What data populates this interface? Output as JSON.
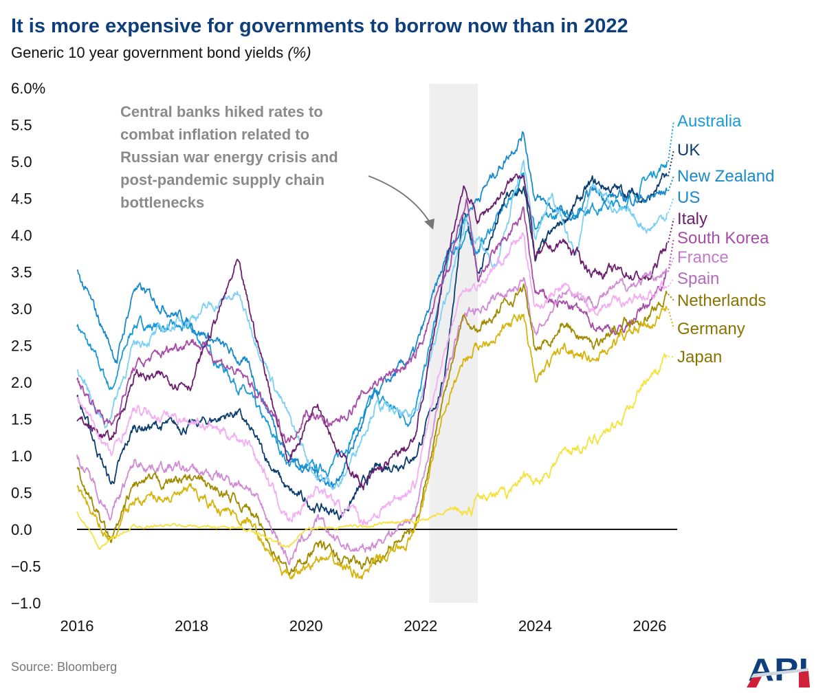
{
  "title": "It is more expensive for governments to borrow now than in 2022",
  "subtitle": "Generic 10 year government bond yields",
  "subtitle_unit": "(%)",
  "source": "Source: Bloomberg",
  "logo_text": "API",
  "chart_data": {
    "type": "line",
    "title": "It is more expensive for governments to borrow now than in 2022",
    "ylabel": "",
    "xlabel": "",
    "ylim": [
      -1.0,
      6.0
    ],
    "xlim": [
      2016,
      2026.4
    ],
    "y_ticks": [
      "6.0%",
      "5.5",
      "5.0",
      "4.5",
      "4.0",
      "3.5",
      "3.0",
      "2.5",
      "2.0",
      "1.5",
      "1.0",
      "0.5",
      "0.0",
      "−0.5",
      "−1.0"
    ],
    "y_tick_values": [
      6.0,
      5.5,
      5.0,
      4.5,
      4.0,
      3.5,
      3.0,
      2.5,
      2.0,
      1.5,
      1.0,
      0.5,
      0.0,
      -0.5,
      -1.0
    ],
    "x_ticks": [
      "2016",
      "2018",
      "2020",
      "2022",
      "2024",
      "2026"
    ],
    "x_tick_values": [
      2016,
      2018,
      2020,
      2022,
      2024,
      2026
    ],
    "grid": false,
    "legend": "right (direct labels)",
    "shaded_period": [
      2022.15,
      2023.0
    ],
    "annotation": [
      "Central banks hiked rates to",
      "combat inflation related to",
      "Russian war energy crisis and",
      "post-pandemic supply chain",
      "bottlenecks"
    ],
    "series": [
      {
        "name": "Australia",
        "color": "#1a9ad6",
        "label_color": "#1a9ad6",
        "x": [
          2016,
          2016.6,
          2017,
          2018,
          2019,
          2019.7,
          2020.2,
          2020.5,
          2021.2,
          2021.8,
          2022,
          2022.5,
          2022.8,
          2023,
          2023.8,
          2024,
          2024.5,
          2025,
          2025.5,
          2026,
          2026.3
        ],
        "y": [
          2.8,
          1.9,
          2.8,
          2.7,
          1.8,
          0.9,
          0.8,
          0.9,
          1.8,
          1.5,
          1.9,
          3.7,
          4.0,
          3.8,
          4.8,
          4.1,
          4.3,
          4.4,
          4.4,
          4.8,
          5.0
        ]
      },
      {
        "name": "UK",
        "color": "#0b3c6e",
        "label_color": "#0b3c6e",
        "x": [
          2016,
          2016.6,
          2017,
          2018,
          2018.8,
          2019.7,
          2020.2,
          2020.6,
          2021.2,
          2021.9,
          2022.4,
          2022.75,
          2023,
          2023.5,
          2023.8,
          2024,
          2024.5,
          2025,
          2025.5,
          2026,
          2026.3
        ],
        "y": [
          1.8,
          0.6,
          1.4,
          1.4,
          1.6,
          0.5,
          0.3,
          0.2,
          0.8,
          1.0,
          2.0,
          4.3,
          3.5,
          4.5,
          4.6,
          3.7,
          4.2,
          4.7,
          4.6,
          4.5,
          4.8
        ]
      },
      {
        "name": "New Zealand",
        "color": "#1989cc",
        "label_color": "#1989cc",
        "x": [
          2016,
          2016.7,
          2017,
          2018,
          2019,
          2019.7,
          2020.5,
          2021.2,
          2021.9,
          2022.5,
          2022.8,
          2023.8,
          2024,
          2024.7,
          2025,
          2025.5,
          2026,
          2026.3
        ],
        "y": [
          3.5,
          2.3,
          3.3,
          2.8,
          2.2,
          1.0,
          0.6,
          1.8,
          2.4,
          3.8,
          4.3,
          5.4,
          4.5,
          4.2,
          4.6,
          4.5,
          4.5,
          4.6
        ]
      },
      {
        "name": "US",
        "color": "#7dd0f5",
        "label_color": "#1989cc",
        "x": [
          2016,
          2016.5,
          2017,
          2018,
          2018.8,
          2019.7,
          2020.2,
          2020.6,
          2021.2,
          2021.8,
          2022,
          2022.4,
          2022.8,
          2023.3,
          2023.8,
          2024,
          2024.3,
          2024.7,
          2025,
          2025.5,
          2026,
          2026.3
        ],
        "y": [
          2.2,
          1.4,
          2.5,
          2.9,
          3.2,
          1.5,
          0.7,
          0.6,
          1.7,
          1.5,
          1.8,
          3.0,
          4.2,
          3.5,
          5.0,
          3.9,
          4.6,
          3.7,
          4.7,
          4.3,
          4.1,
          4.3
        ]
      },
      {
        "name": "Italy",
        "color": "#6b1e6e",
        "label_color": "#6b1e6e",
        "x": [
          2016,
          2016.6,
          2017,
          2018,
          2018.8,
          2019.7,
          2020.2,
          2020.6,
          2021,
          2021.9,
          2022.4,
          2022.75,
          2023,
          2023.8,
          2024,
          2024.5,
          2025,
          2025.5,
          2026,
          2026.3
        ],
        "y": [
          1.5,
          1.2,
          2.1,
          2.0,
          3.6,
          0.9,
          1.8,
          1.0,
          0.6,
          1.2,
          3.4,
          4.7,
          4.2,
          4.9,
          3.7,
          3.9,
          3.5,
          3.5,
          3.4,
          3.9
        ]
      },
      {
        "name": "South Korea",
        "color": "#a64ca6",
        "label_color": "#a64ca6",
        "x": [
          2016,
          2016.6,
          2017,
          2018,
          2019,
          2019.7,
          2020,
          2020.5,
          2021.2,
          2021.9,
          2022.5,
          2022.8,
          2023,
          2023.8,
          2024,
          2024.7,
          2025,
          2025.5,
          2026,
          2026.3
        ],
        "y": [
          2.0,
          1.4,
          2.2,
          2.6,
          2.0,
          1.2,
          1.6,
          1.4,
          2.0,
          2.3,
          3.6,
          4.4,
          3.4,
          4.3,
          3.2,
          3.0,
          2.8,
          2.7,
          3.1,
          3.5
        ]
      },
      {
        "name": "France",
        "color": "#d18ad4",
        "label_color": "#c27bc8",
        "x": [
          2016,
          2016.6,
          2017,
          2018,
          2019,
          2019.7,
          2020.2,
          2020.6,
          2021,
          2021.9,
          2022.4,
          2022.75,
          2023,
          2023.8,
          2024,
          2024.5,
          2025,
          2025.5,
          2026,
          2026.3
        ],
        "y": [
          1.0,
          0.2,
          0.9,
          0.8,
          0.6,
          -0.4,
          0.1,
          -0.2,
          -0.3,
          0.2,
          2.0,
          2.9,
          3.0,
          3.4,
          2.6,
          3.3,
          3.1,
          3.3,
          3.4,
          3.5
        ]
      },
      {
        "name": "Spain",
        "color": "#f3aef3",
        "label_color": "#b569bd",
        "x": [
          2016,
          2016.6,
          2017,
          2018,
          2019,
          2019.7,
          2020.2,
          2020.6,
          2021,
          2021.9,
          2022.4,
          2022.75,
          2023,
          2023.8,
          2024,
          2024.5,
          2025,
          2025.5,
          2026,
          2026.3
        ],
        "y": [
          1.8,
          1.0,
          1.6,
          1.5,
          1.2,
          0.1,
          0.6,
          0.3,
          0.1,
          0.6,
          2.4,
          3.3,
          3.3,
          4.0,
          3.0,
          3.3,
          3.0,
          3.1,
          3.2,
          3.3
        ]
      },
      {
        "name": "Netherlands",
        "color": "#a08a00",
        "label_color": "#8a7300",
        "x": [
          2016,
          2016.6,
          2017,
          2018,
          2019,
          2019.7,
          2020.2,
          2020.6,
          2021,
          2021.9,
          2022.4,
          2022.75,
          2023,
          2023.8,
          2024,
          2024.5,
          2025,
          2025.5,
          2026,
          2026.3
        ],
        "y": [
          0.8,
          -0.2,
          0.6,
          0.7,
          0.3,
          -0.6,
          -0.2,
          -0.4,
          -0.5,
          0.0,
          1.8,
          3.0,
          2.7,
          3.3,
          2.4,
          2.8,
          2.5,
          2.8,
          2.9,
          3.2
        ]
      },
      {
        "name": "Germany",
        "color": "#d6b30a",
        "label_color": "#8a7300",
        "x": [
          2016,
          2016.6,
          2017,
          2018,
          2019,
          2019.7,
          2020.2,
          2020.6,
          2021,
          2021.9,
          2022.4,
          2022.75,
          2023,
          2023.8,
          2024,
          2024.5,
          2025,
          2025.5,
          2026,
          2026.3
        ],
        "y": [
          0.6,
          -0.2,
          0.4,
          0.5,
          0.1,
          -0.7,
          -0.4,
          -0.5,
          -0.6,
          -0.1,
          1.6,
          2.3,
          2.5,
          2.9,
          2.0,
          2.5,
          2.3,
          2.6,
          2.8,
          3.0
        ]
      },
      {
        "name": "Japan",
        "color": "#f5e23c",
        "label_color": "#8a7300",
        "x": [
          2016,
          2016.4,
          2016.8,
          2017,
          2018,
          2019,
          2019.7,
          2020,
          2021,
          2021.9,
          2022.5,
          2022.9,
          2023,
          2023.5,
          2023.8,
          2024,
          2024.5,
          2025,
          2025.5,
          2026,
          2026.3
        ],
        "y": [
          0.25,
          -0.25,
          -0.05,
          0.05,
          0.05,
          0.0,
          -0.25,
          0.0,
          0.05,
          0.1,
          0.25,
          0.25,
          0.5,
          0.45,
          0.8,
          0.6,
          1.05,
          1.2,
          1.5,
          2.1,
          2.35
        ]
      }
    ]
  }
}
